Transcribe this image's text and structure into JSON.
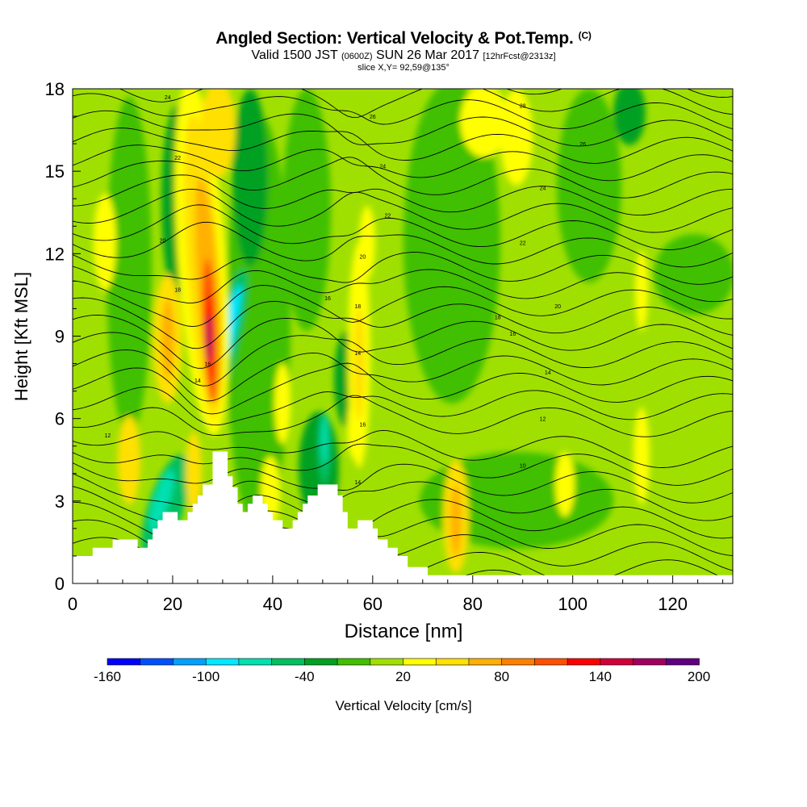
{
  "title": {
    "line1": "Angled Section: Vertical Velocity & Pot.Temp.",
    "line1_unit": "(C)",
    "line2_a": "Valid 1500 JST",
    "line2_b": "(0600Z)",
    "line2_c": "SUN 26 Mar 2017",
    "line2_d": "[12hrFcst@2313z]",
    "line3": "slice X,Y= 92,59@135°"
  },
  "chart_data": {
    "type": "heatmap",
    "xlabel": "Distance [nm]",
    "ylabel": "Height [Kft MSL]",
    "xlim": [
      0,
      132
    ],
    "ylim": [
      0,
      18
    ],
    "x_ticks": [
      0,
      20,
      40,
      60,
      80,
      100,
      120
    ],
    "y_ticks": [
      0,
      3,
      6,
      9,
      12,
      15,
      18
    ],
    "colorbar": {
      "label": "Vertical Velocity [cm/s]",
      "labels": [
        "-160",
        "-100",
        "-40",
        "20",
        "80",
        "140",
        "200"
      ],
      "colors": [
        "#0000ff",
        "#0050ff",
        "#00a0ff",
        "#00e8ff",
        "#00e0b0",
        "#00c060",
        "#00a020",
        "#40c000",
        "#a0e000",
        "#ffff00",
        "#ffe000",
        "#ffb000",
        "#ff8000",
        "#ff5000",
        "#ff0000",
        "#d0003a",
        "#a00060",
        "#600080"
      ]
    },
    "terrain_kft": [
      [
        0,
        1.0
      ],
      [
        4,
        1.0
      ],
      [
        4,
        1.3
      ],
      [
        8,
        1.3
      ],
      [
        8,
        1.6
      ],
      [
        13,
        1.6
      ],
      [
        13,
        1.3
      ],
      [
        15,
        1.3
      ],
      [
        15,
        1.6
      ],
      [
        16,
        1.6
      ],
      [
        16,
        2.0
      ],
      [
        17,
        2.0
      ],
      [
        17,
        2.3
      ],
      [
        18,
        2.3
      ],
      [
        18,
        2.6
      ],
      [
        21,
        2.6
      ],
      [
        21,
        2.3
      ],
      [
        23,
        2.3
      ],
      [
        23,
        2.6
      ],
      [
        24,
        2.6
      ],
      [
        24,
        2.9
      ],
      [
        25,
        2.9
      ],
      [
        25,
        3.2
      ],
      [
        26,
        3.2
      ],
      [
        26,
        3.6
      ],
      [
        28,
        3.6
      ],
      [
        28,
        4.8
      ],
      [
        31,
        4.8
      ],
      [
        31,
        3.9
      ],
      [
        32,
        3.9
      ],
      [
        32,
        3.5
      ],
      [
        33,
        3.5
      ],
      [
        33,
        2.9
      ],
      [
        34,
        2.9
      ],
      [
        34,
        2.6
      ],
      [
        35,
        2.6
      ],
      [
        35,
        2.9
      ],
      [
        36,
        2.9
      ],
      [
        36,
        3.2
      ],
      [
        38,
        3.2
      ],
      [
        38,
        2.9
      ],
      [
        39,
        2.9
      ],
      [
        39,
        2.6
      ],
      [
        40,
        2.6
      ],
      [
        40,
        2.3
      ],
      [
        42,
        2.3
      ],
      [
        42,
        2.0
      ],
      [
        44,
        2.0
      ],
      [
        44,
        2.3
      ],
      [
        45,
        2.3
      ],
      [
        45,
        2.6
      ],
      [
        46,
        2.6
      ],
      [
        46,
        2.9
      ],
      [
        47,
        2.9
      ],
      [
        47,
        3.2
      ],
      [
        49,
        3.2
      ],
      [
        49,
        3.6
      ],
      [
        53,
        3.6
      ],
      [
        53,
        3.2
      ],
      [
        54,
        3.2
      ],
      [
        54,
        2.6
      ],
      [
        55,
        2.6
      ],
      [
        55,
        2.0
      ],
      [
        57,
        2.0
      ],
      [
        57,
        2.3
      ],
      [
        60,
        2.3
      ],
      [
        60,
        2.0
      ],
      [
        61,
        2.0
      ],
      [
        61,
        1.6
      ],
      [
        63,
        1.6
      ],
      [
        63,
        1.3
      ],
      [
        65,
        1.3
      ],
      [
        65,
        1.0
      ],
      [
        67,
        1.0
      ],
      [
        67,
        0.6
      ],
      [
        71,
        0.6
      ],
      [
        71,
        0.3
      ],
      [
        132,
        0.3
      ]
    ],
    "isentrope_labels": [
      {
        "text": "12",
        "x": 7,
        "y": 5.4
      },
      {
        "text": "14",
        "x": 25,
        "y": 7.4
      },
      {
        "text": "16",
        "x": 27,
        "y": 8.0
      },
      {
        "text": "18",
        "x": 21,
        "y": 10.7
      },
      {
        "text": "20",
        "x": 18,
        "y": 12.5
      },
      {
        "text": "22",
        "x": 21,
        "y": 15.5
      },
      {
        "text": "24",
        "x": 19,
        "y": 17.7
      },
      {
        "text": "14",
        "x": 57,
        "y": 3.7
      },
      {
        "text": "16",
        "x": 58,
        "y": 5.8
      },
      {
        "text": "14",
        "x": 57,
        "y": 8.4
      },
      {
        "text": "18",
        "x": 57,
        "y": 10.1
      },
      {
        "text": "16",
        "x": 51,
        "y": 10.4
      },
      {
        "text": "20",
        "x": 58,
        "y": 11.9
      },
      {
        "text": "22",
        "x": 63,
        "y": 13.4
      },
      {
        "text": "24",
        "x": 62,
        "y": 15.2
      },
      {
        "text": "26",
        "x": 60,
        "y": 17.0
      },
      {
        "text": "10",
        "x": 90,
        "y": 4.3
      },
      {
        "text": "12",
        "x": 94,
        "y": 6.0
      },
      {
        "text": "14",
        "x": 95,
        "y": 7.7
      },
      {
        "text": "16",
        "x": 88,
        "y": 9.1
      },
      {
        "text": "18",
        "x": 85,
        "y": 9.7
      },
      {
        "text": "20",
        "x": 97,
        "y": 10.1
      },
      {
        "text": "22",
        "x": 90,
        "y": 12.4
      },
      {
        "text": "24",
        "x": 94,
        "y": 14.4
      },
      {
        "text": "26",
        "x": 102,
        "y": 16.0
      },
      {
        "text": "28",
        "x": 90,
        "y": 17.4
      }
    ]
  }
}
